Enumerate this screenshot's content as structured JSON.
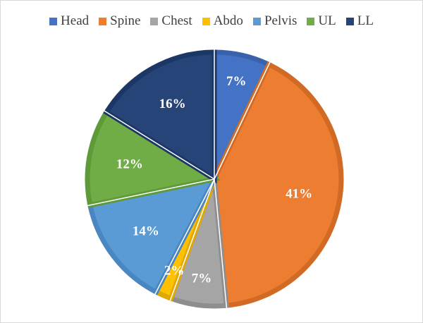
{
  "chart_data": {
    "type": "pie",
    "categories": [
      "Head",
      "Spine",
      "Chest",
      "Abdo",
      "Pelvis",
      "UL",
      "LL"
    ],
    "values": [
      7,
      41,
      7,
      2,
      14,
      12,
      16
    ],
    "labels": [
      "7%",
      "41%",
      "7%",
      "2%",
      "14%",
      "12%",
      "16%"
    ],
    "colors": [
      "#4472C4",
      "#ED7D31",
      "#A5A5A5",
      "#FFC000",
      "#5B9BD5",
      "#70AD47",
      "#264478"
    ],
    "edge_colors": [
      "#3A62AC",
      "#D06A24",
      "#8E8E8E",
      "#E0A800",
      "#4A86C0",
      "#5E9A38",
      "#1C3766"
    ],
    "legend_position": "top",
    "start_angle": "12 o'clock, clockwise"
  }
}
